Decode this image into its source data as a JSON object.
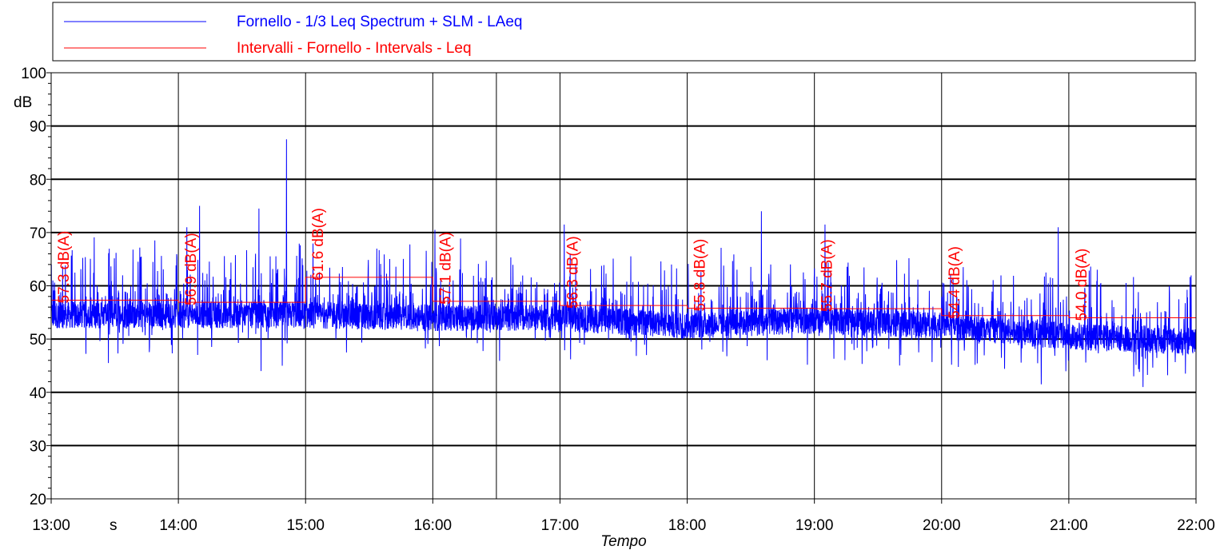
{
  "chart_data": {
    "type": "line",
    "xlabel": "Tempo",
    "ylabel": "dB",
    "x_unit_label": "s",
    "x_ticks": [
      "13:00",
      "14:00",
      "15:00",
      "16:00",
      "17:00",
      "18:00",
      "19:00",
      "20:00",
      "21:00",
      "22:00"
    ],
    "x_range": [
      "13:00",
      "22:00"
    ],
    "y_ticks": [
      20,
      30,
      40,
      50,
      60,
      70,
      80,
      90,
      100
    ],
    "ylim": [
      20,
      100
    ],
    "grid": true,
    "legend_position": "top",
    "colors": {
      "laeq": "#0000ff",
      "leq": "#ff0000",
      "grid": "#000000"
    },
    "series": [
      {
        "name": "Fornello - 1/3 Leq Spectrum + SLM - LAeq",
        "color": "#0000ff",
        "baseline": [
          {
            "x": "13:00",
            "y": 54.5
          },
          {
            "x": "14:00",
            "y": 54.5
          },
          {
            "x": "15:00",
            "y": 54.5
          },
          {
            "x": "16:00",
            "y": 54.0
          },
          {
            "x": "17:00",
            "y": 54.0
          },
          {
            "x": "18:00",
            "y": 52.5
          },
          {
            "x": "19:00",
            "y": 53.5
          },
          {
            "x": "20:00",
            "y": 52.5
          },
          {
            "x": "21:00",
            "y": 50.5
          },
          {
            "x": "22:00",
            "y": 49.5
          }
        ],
        "peaks": [
          {
            "x": "13:27",
            "y": 75.5
          },
          {
            "x": "14:04",
            "y": 71.0
          },
          {
            "x": "14:10",
            "y": 75.0
          },
          {
            "x": "14:38",
            "y": 74.5
          },
          {
            "x": "14:51",
            "y": 87.5
          },
          {
            "x": "16:01",
            "y": 70.5
          },
          {
            "x": "17:02",
            "y": 71.5
          },
          {
            "x": "18:35",
            "y": 74.0
          },
          {
            "x": "19:05",
            "y": 71.5
          },
          {
            "x": "20:55",
            "y": 71.0
          }
        ],
        "dips": [
          {
            "x": "13:27",
            "y": 45.5
          },
          {
            "x": "14:39",
            "y": 44.0
          },
          {
            "x": "14:49",
            "y": 45.0
          },
          {
            "x": "20:47",
            "y": 41.5
          },
          {
            "x": "21:35",
            "y": 41.0
          },
          {
            "x": "21:55",
            "y": 43.5
          }
        ]
      },
      {
        "name": "Intervalli - Fornello - Intervals - Leq",
        "color": "#ff0000",
        "intervals": [
          {
            "start": "13:00",
            "end": "14:00",
            "leq": 57.3,
            "label": "57.3 dB(A)"
          },
          {
            "start": "14:00",
            "end": "15:00",
            "leq": 56.9,
            "label": "56.9 dB(A)"
          },
          {
            "start": "15:00",
            "end": "16:00",
            "leq": 61.6,
            "label": "61.6 dB(A)"
          },
          {
            "start": "16:00",
            "end": "17:00",
            "leq": 57.1,
            "label": "57.1 dB(A)"
          },
          {
            "start": "17:00",
            "end": "18:00",
            "leq": 56.3,
            "label": "56.3 dB(A)"
          },
          {
            "start": "18:00",
            "end": "19:00",
            "leq": 55.8,
            "label": "55.8 dB(A)"
          },
          {
            "start": "19:00",
            "end": "20:00",
            "leq": 55.7,
            "label": "55.7 dB(A)"
          },
          {
            "start": "20:00",
            "end": "21:00",
            "leq": 54.4,
            "label": "54.4 dB(A)"
          },
          {
            "start": "21:00",
            "end": "22:00",
            "leq": 54.0,
            "label": "54.0 dB(A)"
          }
        ]
      }
    ]
  }
}
